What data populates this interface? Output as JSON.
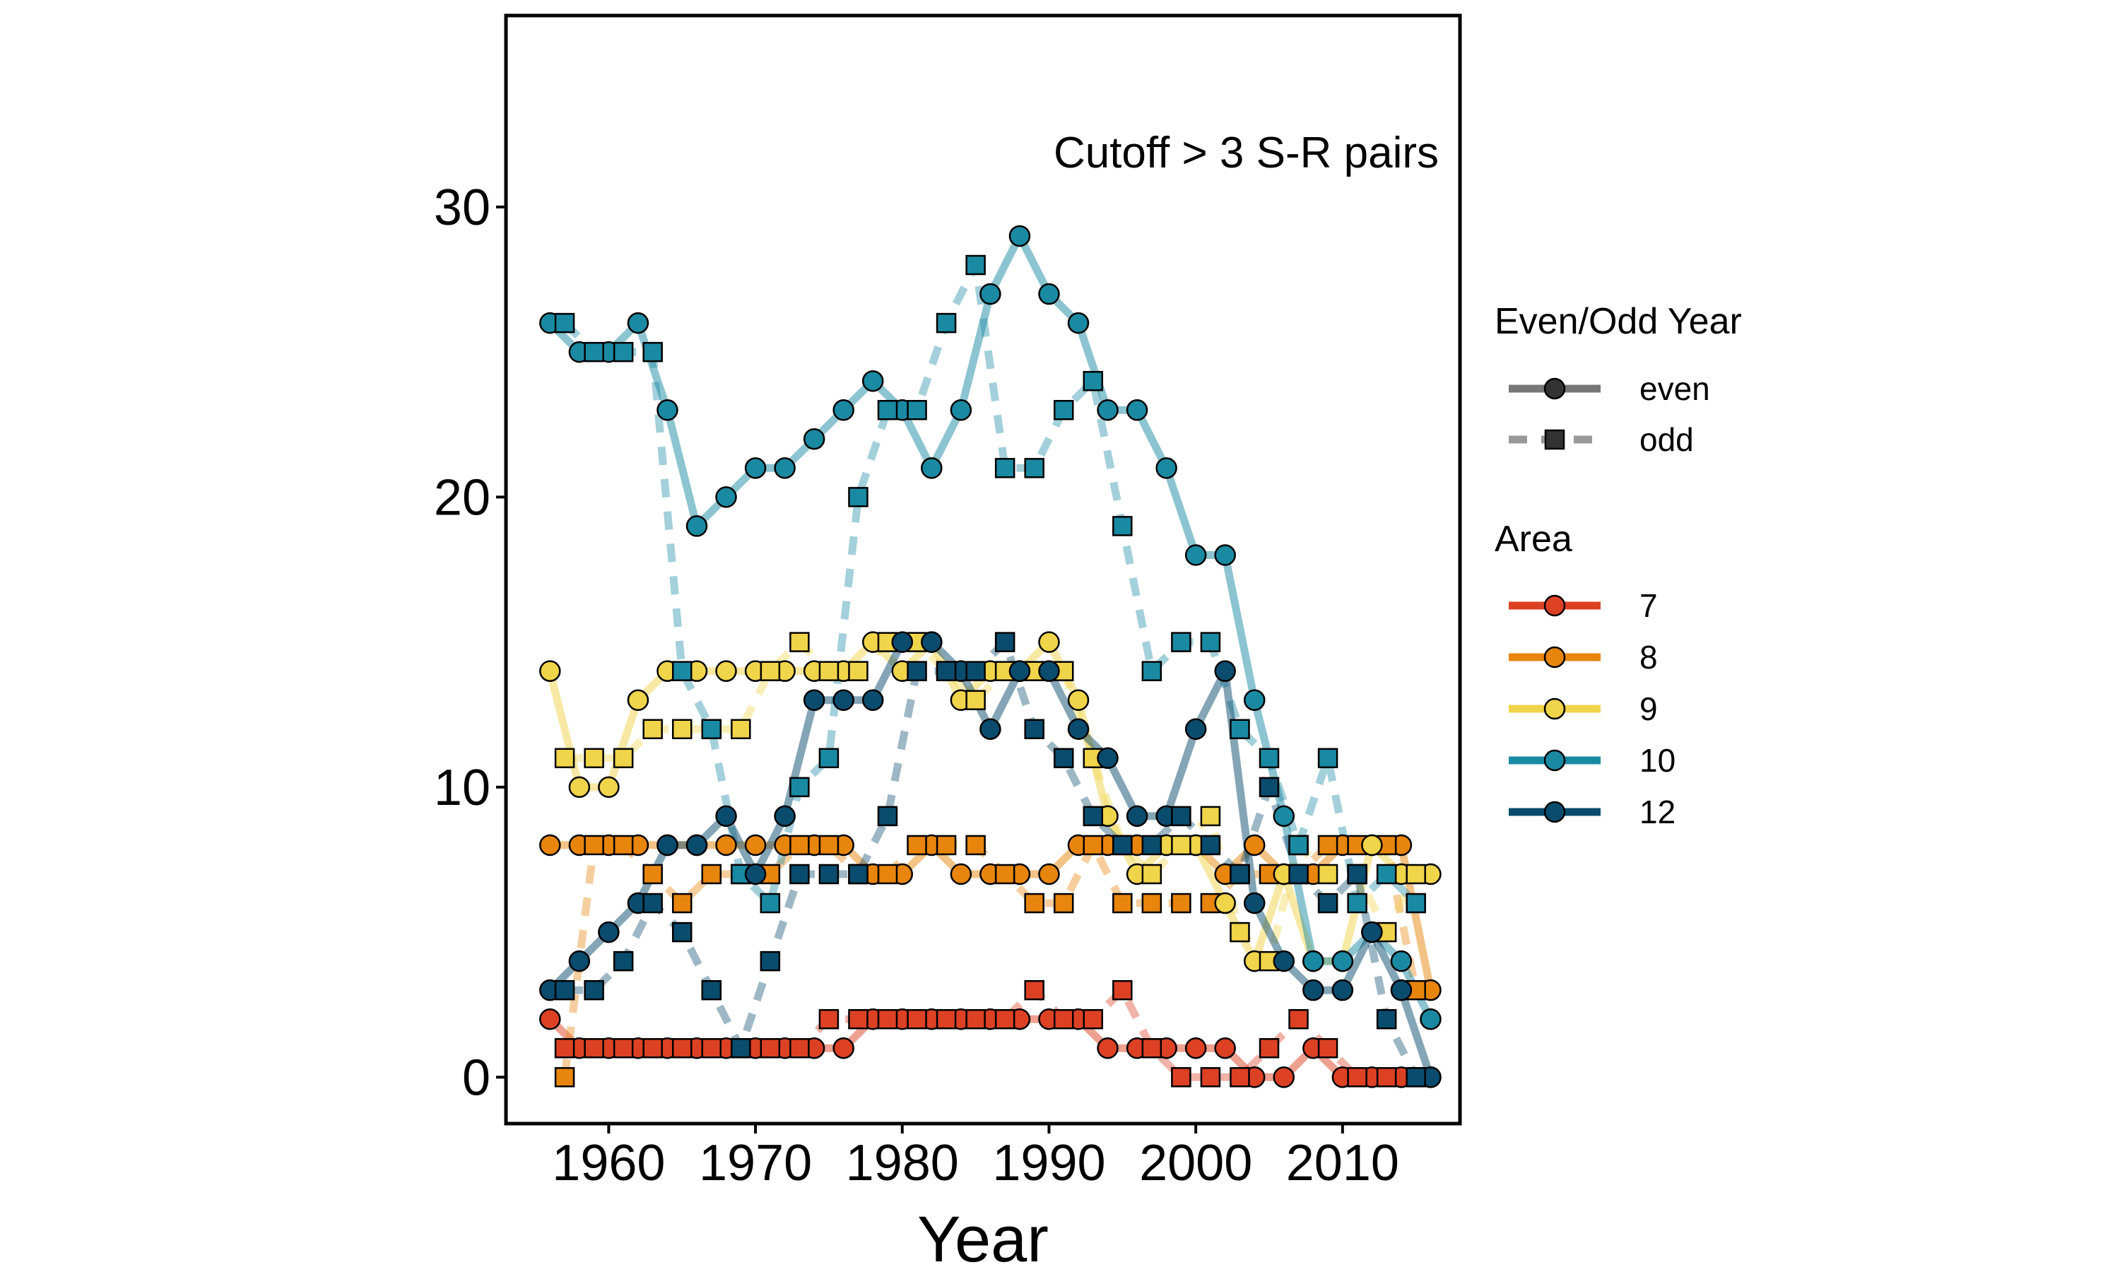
{
  "chart_data": {
    "type": "line",
    "title": "",
    "annotation": "Cutoff > 3 S-R pairs",
    "xlabel": "Year",
    "ylabel": "",
    "xlim": [
      1953,
      2018
    ],
    "ylim": [
      -1.6,
      36.6
    ],
    "xticks": [
      1960,
      1970,
      1980,
      1990,
      2000,
      2010
    ],
    "yticks": [
      0,
      10,
      20,
      30
    ],
    "grid": false,
    "legend_position": "right",
    "legends": {
      "line_type": {
        "title": "Even/Odd Year",
        "items": [
          {
            "label": "even",
            "line": "solid",
            "marker": "circle"
          },
          {
            "label": "odd",
            "line": "dashed",
            "marker": "square"
          }
        ]
      },
      "area": {
        "title": "Area",
        "items": [
          {
            "label": "7",
            "color": "#DD4124"
          },
          {
            "label": "8",
            "color": "#E8850C"
          },
          {
            "label": "9",
            "color": "#F0D44A"
          },
          {
            "label": "10",
            "color": "#1A8AA3"
          },
          {
            "label": "12",
            "color": "#0A4C6E"
          }
        ]
      }
    },
    "series": [
      {
        "area": "7",
        "parity": "even",
        "color": "#DD4124",
        "x": [
          1956,
          1958,
          1960,
          1962,
          1964,
          1966,
          1968,
          1970,
          1972,
          1974,
          1976,
          1978,
          1980,
          1982,
          1984,
          1986,
          1988,
          1990,
          1992,
          1994,
          1996,
          1998,
          2000,
          2002,
          2004,
          2006,
          2008,
          2010,
          2012,
          2014,
          2016
        ],
        "y": [
          2,
          1,
          1,
          1,
          1,
          1,
          1,
          1,
          1,
          1,
          1,
          2,
          2,
          2,
          2,
          2,
          2,
          2,
          2,
          1,
          1,
          1,
          1,
          1,
          0,
          0,
          1,
          0,
          0,
          0,
          0
        ]
      },
      {
        "area": "7",
        "parity": "odd",
        "color": "#DD4124",
        "x": [
          1957,
          1959,
          1961,
          1963,
          1965,
          1967,
          1969,
          1971,
          1973,
          1975,
          1977,
          1979,
          1981,
          1983,
          1985,
          1987,
          1989,
          1991,
          1993,
          1995,
          1997,
          1999,
          2001,
          2003,
          2005,
          2007,
          2009,
          2011,
          2013,
          2015
        ],
        "y": [
          1,
          1,
          1,
          1,
          1,
          1,
          1,
          1,
          1,
          2,
          2,
          2,
          2,
          2,
          2,
          2,
          3,
          2,
          2,
          3,
          1,
          0,
          0,
          0,
          1,
          2,
          1,
          0,
          0,
          0
        ]
      },
      {
        "area": "8",
        "parity": "even",
        "color": "#E8850C",
        "x": [
          1956,
          1958,
          1960,
          1962,
          1964,
          1966,
          1968,
          1970,
          1972,
          1974,
          1976,
          1978,
          1980,
          1982,
          1984,
          1986,
          1988,
          1990,
          1992,
          1994,
          1996,
          1998,
          2000,
          2002,
          2004,
          2006,
          2008,
          2010,
          2012,
          2014,
          2016
        ],
        "y": [
          8,
          8,
          8,
          8,
          8,
          8,
          8,
          8,
          8,
          8,
          8,
          7,
          7,
          8,
          7,
          7,
          7,
          7,
          8,
          8,
          8,
          8,
          8,
          7,
          8,
          7,
          7,
          8,
          8,
          8,
          3
        ]
      },
      {
        "area": "8",
        "parity": "odd",
        "color": "#E8850C",
        "x": [
          1957,
          1959,
          1961,
          1963,
          1965,
          1967,
          1969,
          1971,
          1973,
          1975,
          1977,
          1979,
          1981,
          1983,
          1985,
          1987,
          1989,
          1991,
          1993,
          1995,
          1997,
          1999,
          2001,
          2003,
          2005,
          2007,
          2009,
          2011,
          2013,
          2015
        ],
        "y": [
          0,
          8,
          8,
          7,
          6,
          7,
          7,
          7,
          8,
          8,
          7,
          7,
          8,
          8,
          8,
          7,
          6,
          6,
          8,
          6,
          6,
          6,
          6,
          7,
          7,
          7,
          8,
          8,
          8,
          3
        ]
      },
      {
        "area": "9",
        "parity": "even",
        "color": "#F0D44A",
        "x": [
          1956,
          1958,
          1960,
          1962,
          1964,
          1966,
          1968,
          1970,
          1972,
          1974,
          1976,
          1978,
          1980,
          1982,
          1984,
          1986,
          1988,
          1990,
          1992,
          1994,
          1996,
          1998,
          2000,
          2002,
          2004,
          2006,
          2008,
          2010,
          2012,
          2014,
          2016
        ],
        "y": [
          14,
          10,
          10,
          13,
          14,
          14,
          14,
          14,
          14,
          14,
          14,
          15,
          14,
          15,
          13,
          14,
          14,
          15,
          13,
          9,
          7,
          8,
          8,
          6,
          4,
          7,
          4,
          4,
          8,
          7,
          7
        ]
      },
      {
        "area": "9",
        "parity": "odd",
        "color": "#F0D44A",
        "x": [
          1957,
          1959,
          1961,
          1963,
          1965,
          1967,
          1969,
          1971,
          1973,
          1975,
          1977,
          1979,
          1981,
          1983,
          1985,
          1987,
          1989,
          1991,
          1993,
          1995,
          1997,
          1999,
          2001,
          2003,
          2005,
          2007,
          2009,
          2011,
          2013,
          2015
        ],
        "y": [
          11,
          11,
          11,
          12,
          12,
          12,
          12,
          14,
          15,
          14,
          14,
          15,
          15,
          14,
          13,
          14,
          14,
          14,
          11,
          8,
          7,
          8,
          9,
          5,
          4,
          8,
          7,
          7,
          5,
          7
        ]
      },
      {
        "area": "10",
        "parity": "even",
        "color": "#1A8AA3",
        "x": [
          1956,
          1958,
          1960,
          1962,
          1964,
          1966,
          1968,
          1970,
          1972,
          1974,
          1976,
          1978,
          1980,
          1982,
          1984,
          1986,
          1988,
          1990,
          1992,
          1994,
          1996,
          1998,
          2000,
          2002,
          2004,
          2006,
          2008,
          2010,
          2012,
          2014,
          2016
        ],
        "y": [
          26,
          25,
          25,
          26,
          23,
          19,
          20,
          21,
          21,
          22,
          23,
          24,
          23,
          21,
          23,
          27,
          29,
          27,
          26,
          23,
          23,
          21,
          18,
          18,
          13,
          9,
          4,
          4,
          5,
          4,
          2
        ]
      },
      {
        "area": "10",
        "parity": "odd",
        "color": "#1A8AA3",
        "x": [
          1957,
          1959,
          1961,
          1963,
          1965,
          1967,
          1969,
          1971,
          1973,
          1975,
          1977,
          1979,
          1981,
          1983,
          1985,
          1987,
          1989,
          1991,
          1993,
          1995,
          1997,
          1999,
          2001,
          2003,
          2005,
          2007,
          2009,
          2011,
          2013,
          2015
        ],
        "y": [
          26,
          25,
          25,
          25,
          14,
          12,
          7,
          6,
          10,
          11,
          20,
          23,
          23,
          26,
          28,
          21,
          21,
          23,
          24,
          19,
          14,
          15,
          15,
          12,
          11,
          8,
          11,
          6,
          7,
          6
        ]
      },
      {
        "area": "12",
        "parity": "even",
        "color": "#0A4C6E",
        "x": [
          1956,
          1958,
          1960,
          1962,
          1964,
          1966,
          1968,
          1970,
          1972,
          1974,
          1976,
          1978,
          1980,
          1982,
          1984,
          1986,
          1988,
          1990,
          1992,
          1994,
          1996,
          1998,
          2000,
          2002,
          2004,
          2006,
          2008,
          2010,
          2012,
          2014,
          2016
        ],
        "y": [
          3,
          4,
          5,
          6,
          8,
          8,
          9,
          7,
          9,
          13,
          13,
          13,
          15,
          15,
          14,
          12,
          14,
          14,
          12,
          11,
          9,
          9,
          12,
          14,
          6,
          4,
          3,
          3,
          5,
          3,
          0
        ]
      },
      {
        "area": "12",
        "parity": "odd",
        "color": "#0A4C6E",
        "x": [
          1957,
          1959,
          1961,
          1963,
          1965,
          1967,
          1969,
          1971,
          1973,
          1975,
          1977,
          1979,
          1981,
          1983,
          1985,
          1987,
          1989,
          1991,
          1993,
          1995,
          1997,
          1999,
          2001,
          2003,
          2005,
          2007,
          2009,
          2011,
          2013,
          2015
        ],
        "y": [
          3,
          3,
          4,
          6,
          5,
          3,
          1,
          4,
          7,
          7,
          7,
          9,
          14,
          14,
          14,
          15,
          12,
          11,
          9,
          8,
          8,
          9,
          8,
          7,
          10,
          7,
          6,
          7,
          2,
          0
        ]
      }
    ]
  }
}
